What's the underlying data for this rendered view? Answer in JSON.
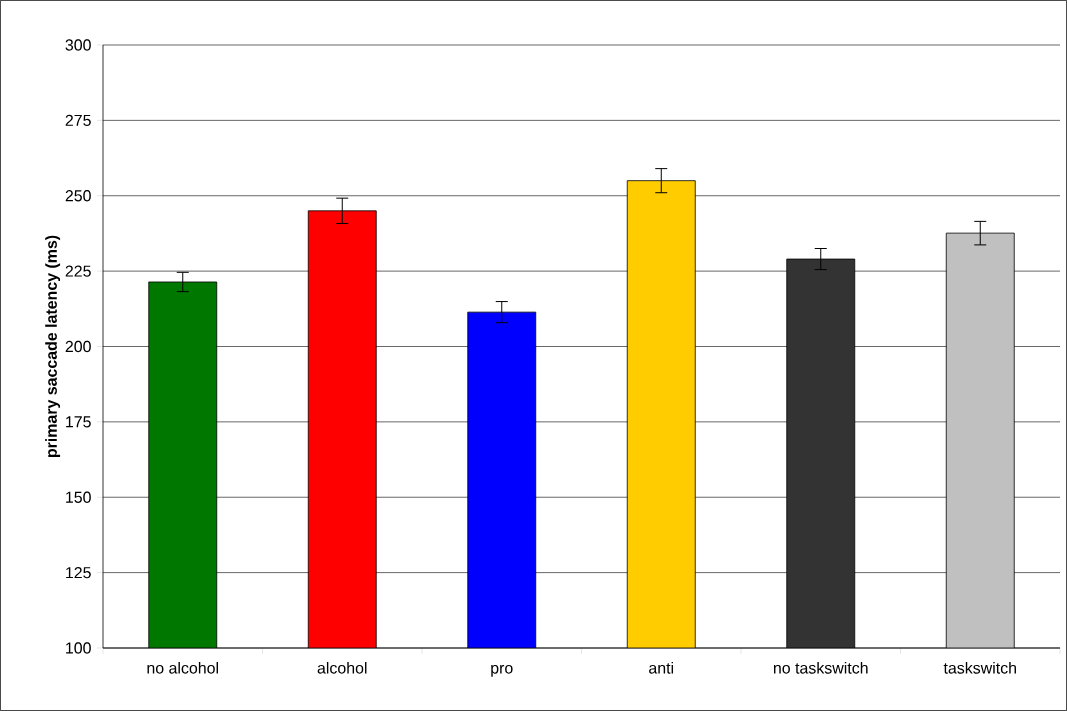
{
  "chart_data": {
    "type": "bar",
    "ylabel": "primary saccade latency (ms)",
    "categories": [
      "no alcohol",
      "alcohol",
      "pro",
      "anti",
      "no taskswitch",
      "taskswitch"
    ],
    "values": [
      221.4,
      245,
      211.4,
      255,
      229,
      237.6
    ],
    "errors": [
      3.2,
      4.2,
      3.5,
      4,
      3.5,
      3.9
    ],
    "colors": [
      "#007800",
      "#ff0000",
      "#0000ff",
      "#ffcc00",
      "#333333",
      "#c0c0c0"
    ],
    "ylim": [
      100,
      300
    ],
    "yticks": [
      100,
      125,
      150,
      175,
      200,
      225,
      250,
      275,
      300
    ],
    "grid": "y"
  }
}
